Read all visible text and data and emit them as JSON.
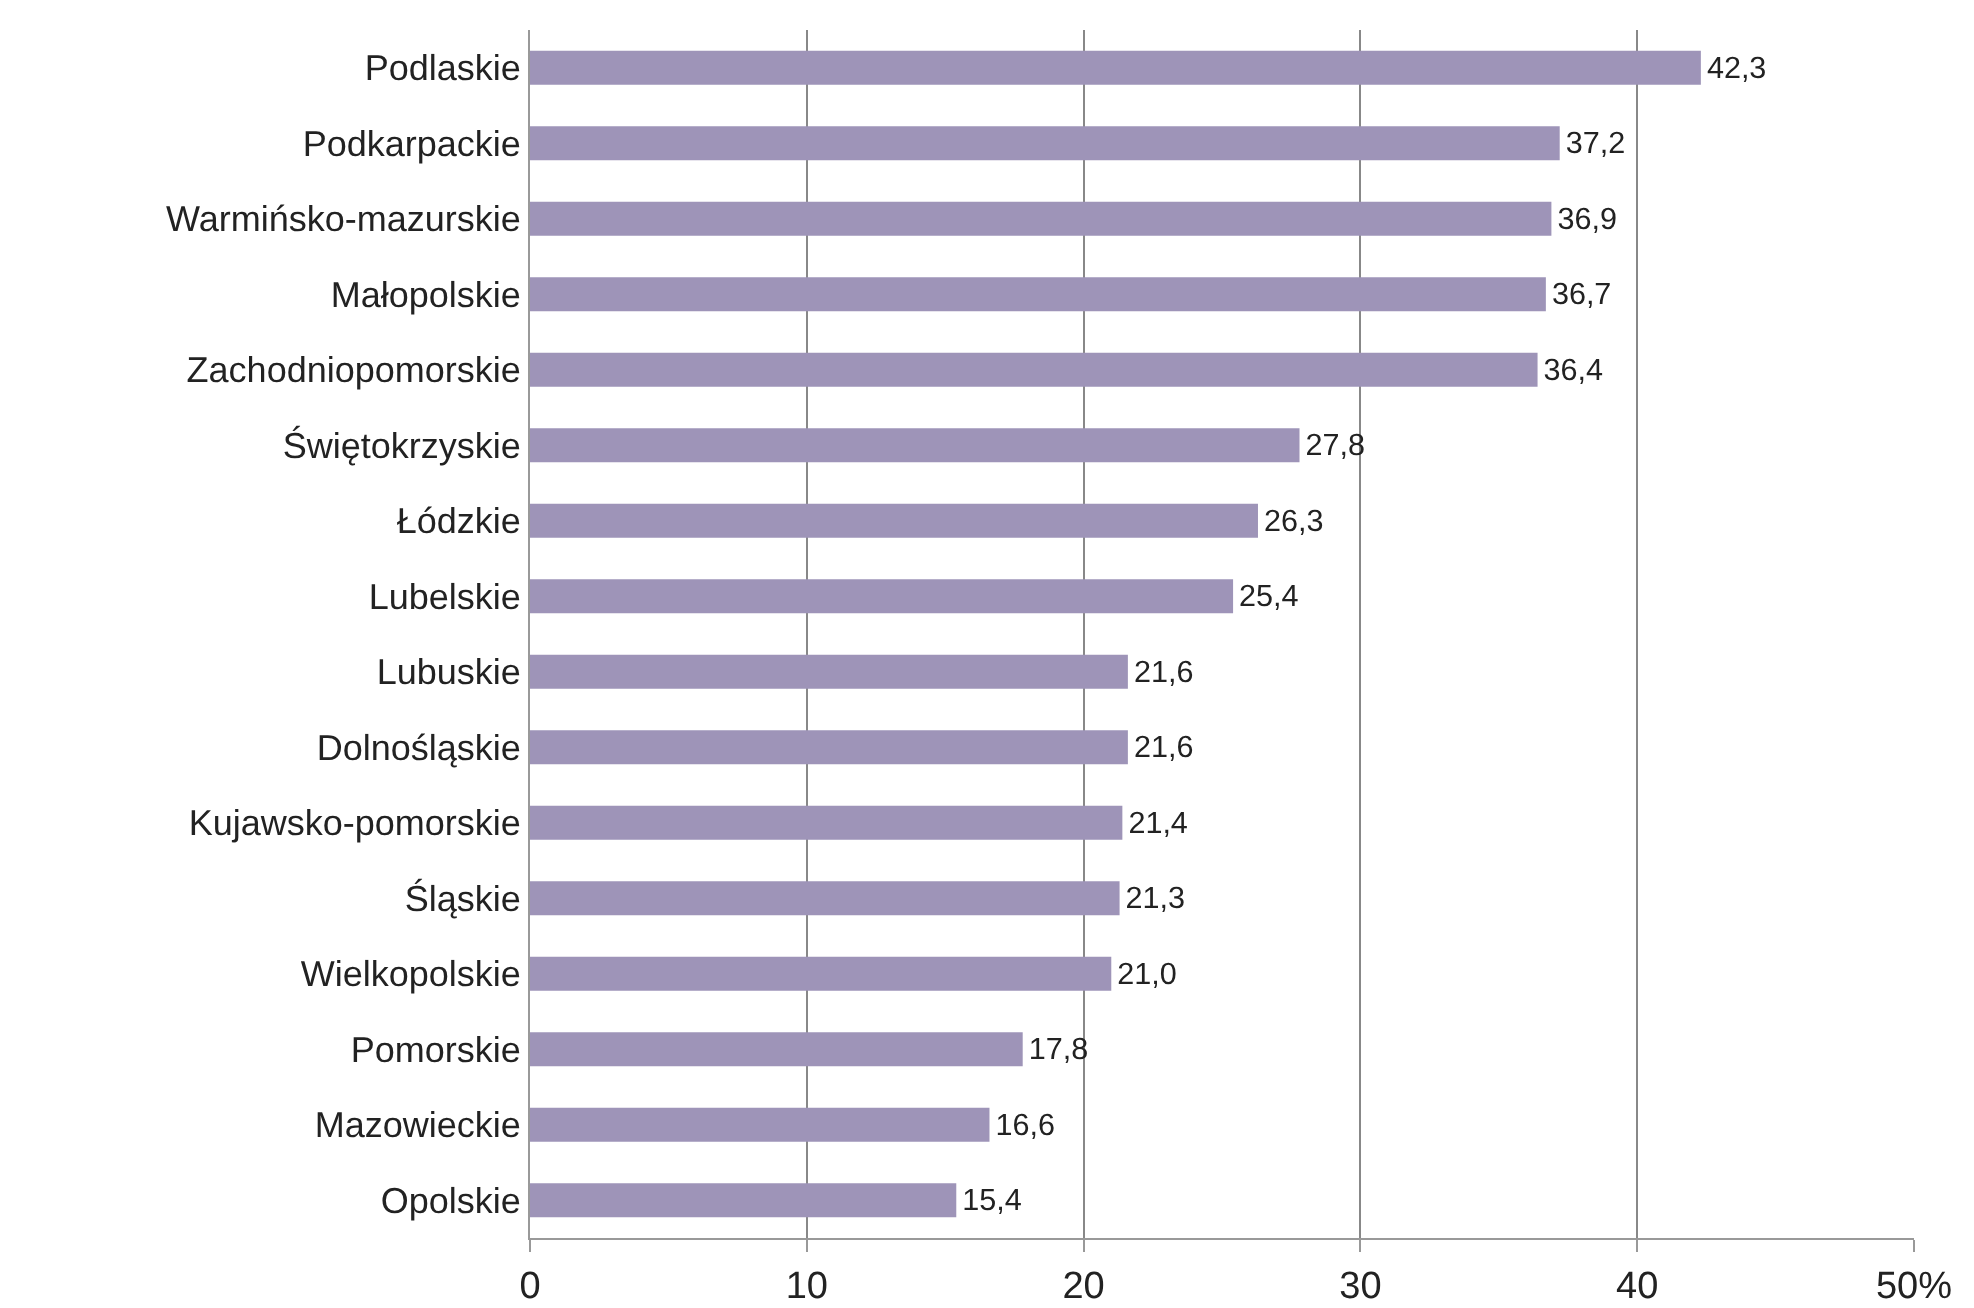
{
  "chart_data": {
    "type": "bar",
    "orientation": "horizontal",
    "categories": [
      "Podlaskie",
      "Podkarpackie",
      "Warmińsko-mazurskie",
      "Małopolskie",
      "Zachodniopomorskie",
      "Świętokrzyskie",
      "Łódzkie",
      "Lubelskie",
      "Lubuskie",
      "Dolnośląskie",
      "Kujawsko-pomorskie",
      "Śląskie",
      "Wielkopolskie",
      "Pomorskie",
      "Mazowieckie",
      "Opolskie"
    ],
    "values": [
      42.3,
      37.2,
      36.9,
      36.7,
      36.4,
      27.8,
      26.3,
      25.4,
      21.6,
      21.6,
      21.4,
      21.3,
      21.0,
      17.8,
      16.6,
      15.4
    ],
    "value_labels": [
      "42,3",
      "37,2",
      "36,9",
      "36,7",
      "36,4",
      "27,8",
      "26,3",
      "25,4",
      "21,6",
      "21,6",
      "21,4",
      "21,3",
      "21,0",
      "17,8",
      "16,6",
      "15,4"
    ],
    "color": "#9e94b8",
    "xlim": [
      0,
      50
    ],
    "xticks": [
      0,
      10,
      20,
      30,
      40,
      {
        "value": 50,
        "label": "50%"
      }
    ],
    "grid": "x"
  }
}
